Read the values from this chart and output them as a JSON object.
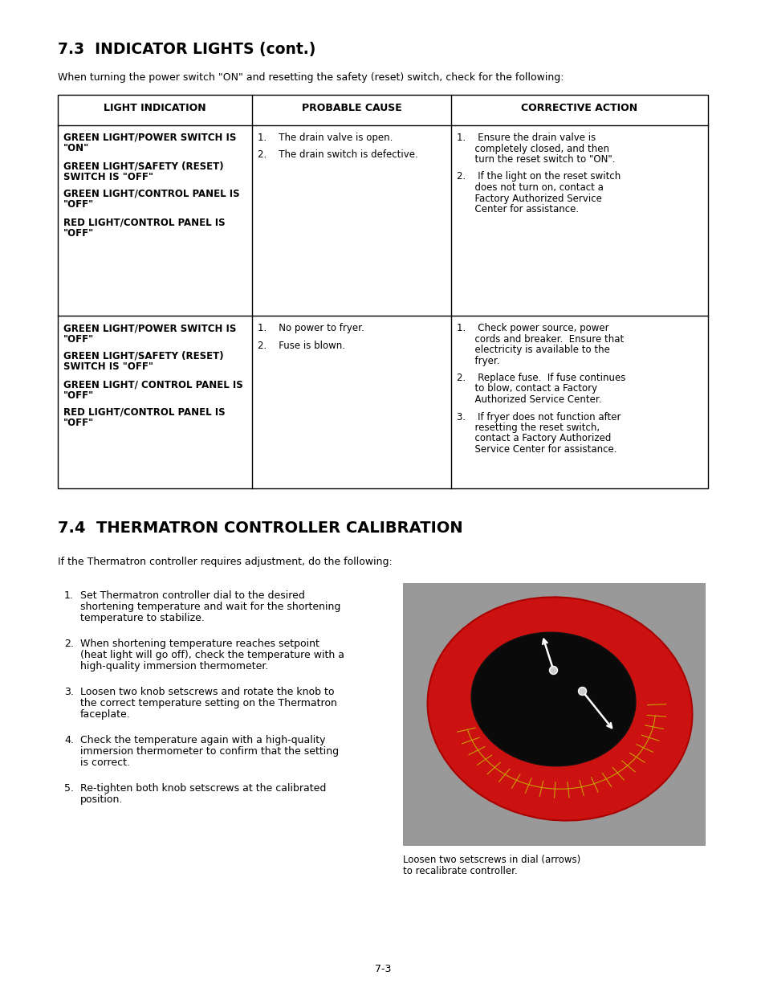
{
  "page_background": "#ffffff",
  "section1_title": "7.3  INDICATOR LIGHTS (cont.)",
  "section1_intro": "When turning the power switch \"ON\" and resetting the safety (reset) switch, check for the following:",
  "table_headers": [
    "LIGHT INDICATION",
    "PROBABLE CAUSE",
    "CORRECTIVE ACTION"
  ],
  "row1_col1": [
    [
      "GREEN LIGHT/POWER SWITCH IS",
      true
    ],
    [
      "\"ON\"",
      true
    ],
    [
      "",
      false
    ],
    [
      "GREEN LIGHT/SAFETY (RESET)",
      true
    ],
    [
      "SWITCH IS \"OFF\"",
      true
    ],
    [
      "",
      false
    ],
    [
      "GREEN LIGHT/CONTROL PANEL IS",
      true
    ],
    [
      "\"OFF\"",
      true
    ],
    [
      "",
      false
    ],
    [
      "RED LIGHT/CONTROL PANEL IS",
      true
    ],
    [
      "\"OFF\"",
      true
    ]
  ],
  "row1_col2": [
    "1.    The drain valve is open.",
    "",
    "2.    The drain switch is defective."
  ],
  "row1_col3": [
    "1.    Ensure the drain valve is",
    "      completely closed, and then",
    "      turn the reset switch to \"ON\".",
    "",
    "2.    If the light on the reset switch",
    "      does not turn on, contact a",
    "      Factory Authorized Service",
    "      Center for assistance."
  ],
  "row2_col1": [
    [
      "GREEN LIGHT/POWER SWITCH IS",
      true
    ],
    [
      "\"OFF\"",
      true
    ],
    [
      "",
      false
    ],
    [
      "GREEN LIGHT/SAFETY (RESET)",
      true
    ],
    [
      "SWITCH IS \"OFF\"",
      true
    ],
    [
      "",
      false
    ],
    [
      "GREEN LIGHT/ CONTROL PANEL IS",
      true
    ],
    [
      "\"OFF\"",
      true
    ],
    [
      "",
      false
    ],
    [
      "RED LIGHT/CONTROL PANEL IS",
      true
    ],
    [
      "\"OFF\"",
      true
    ]
  ],
  "row2_col2": [
    "1.    No power to fryer.",
    "",
    "2.    Fuse is blown."
  ],
  "row2_col3": [
    "1.    Check power source, power",
    "      cords and breaker.  Ensure that",
    "      electricity is available to the",
    "      fryer.",
    "",
    "2.    Replace fuse.  If fuse continues",
    "      to blow, contact a Factory",
    "      Authorized Service Center.",
    "",
    "3.    If fryer does not function after",
    "      resetting the reset switch,",
    "      contact a Factory Authorized",
    "      Service Center for assistance."
  ],
  "section2_title": "7.4  THERMATRON CONTROLLER CALIBRATION",
  "section2_intro": "If the Thermatron controller requires adjustment, do the following:",
  "items": [
    [
      "Set Thermatron controller dial to the desired",
      "shortening temperature and wait for the shortening",
      "temperature to stabilize."
    ],
    [
      "When shortening temperature reaches setpoint",
      "(heat light will go off), check the temperature with a",
      "high-quality immersion thermometer."
    ],
    [
      "Loosen two knob setscrews and rotate the knob to",
      "the correct temperature setting on the Thermatron",
      "faceplate."
    ],
    [
      "Check the temperature again with a high-quality",
      "immersion thermometer to confirm that the setting",
      "is correct."
    ],
    [
      "Re-tighten both knob setscrews at the calibrated",
      "position."
    ]
  ],
  "image_caption_line1": "Loosen two setscrews in dial (arrows)",
  "image_caption_line2": "to recalibrate controller.",
  "page_number": "7-3"
}
